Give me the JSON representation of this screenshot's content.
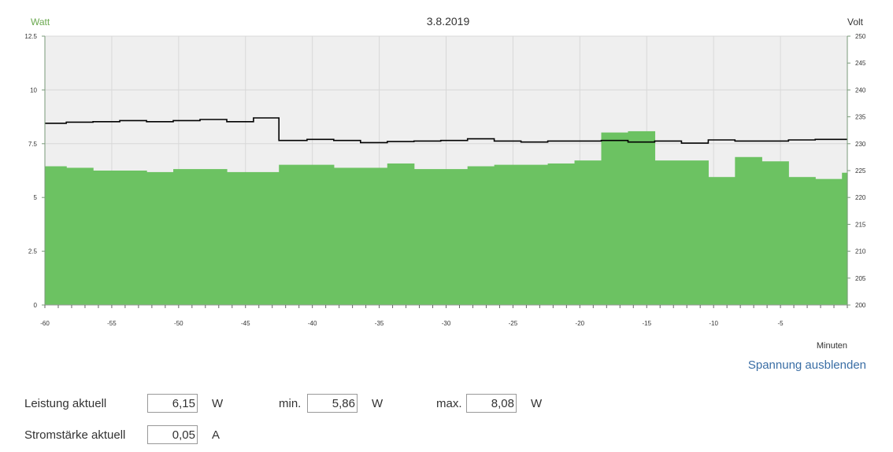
{
  "chart_data": {
    "type": "bar",
    "title": "3.8.2019",
    "xlabel": "Minuten",
    "ylabel_left": "Watt",
    "ylabel_right": "Volt",
    "xlim": [
      -60,
      0
    ],
    "ylim_left": [
      0,
      12.5
    ],
    "ylim_right": [
      200,
      250
    ],
    "x_ticks": [
      -60,
      -55,
      -50,
      -45,
      -40,
      -35,
      -30,
      -25,
      -20,
      -15,
      -10,
      -5
    ],
    "x_tick_labels": [
      "-60",
      "-55",
      "-50",
      "-45",
      "-40",
      "-35",
      "-30",
      "-25",
      "-20",
      "-15",
      "-10",
      "-5"
    ],
    "y_ticks_left": [
      0,
      2.5,
      5,
      7.5,
      10,
      12.5
    ],
    "y_tick_labels_left": [
      "0",
      "2.5",
      "5",
      "7.5",
      "10",
      "12.5"
    ],
    "y_ticks_right": [
      200,
      205,
      210,
      215,
      220,
      225,
      230,
      235,
      240,
      245,
      250
    ],
    "y_tick_labels_right": [
      "200",
      "205",
      "210",
      "215",
      "220",
      "225",
      "230",
      "235",
      "240",
      "245",
      "250"
    ],
    "grid": true,
    "colors": {
      "power": "#6cc262",
      "voltage": "#000000",
      "plot_bg": "#efefef",
      "watt_label": "#6aa84f"
    },
    "series": [
      {
        "kind": "power",
        "axis": "left",
        "values": [
          {
            "x0": -60,
            "x1": -58.4,
            "y": 6.45
          },
          {
            "x0": -58.4,
            "x1": -56.4,
            "y": 6.38
          },
          {
            "x0": -56.4,
            "x1": -52.4,
            "y": 6.25
          },
          {
            "x0": -52.4,
            "x1": -50.4,
            "y": 6.18
          },
          {
            "x0": -50.4,
            "x1": -46.4,
            "y": 6.32
          },
          {
            "x0": -46.4,
            "x1": -42.5,
            "y": 6.18
          },
          {
            "x0": -42.5,
            "x1": -38.4,
            "y": 6.52
          },
          {
            "x0": -38.4,
            "x1": -34.4,
            "y": 6.38
          },
          {
            "x0": -34.4,
            "x1": -32.4,
            "y": 6.58
          },
          {
            "x0": -32.4,
            "x1": -28.4,
            "y": 6.32
          },
          {
            "x0": -28.4,
            "x1": -26.4,
            "y": 6.45
          },
          {
            "x0": -26.4,
            "x1": -22.4,
            "y": 6.52
          },
          {
            "x0": -22.4,
            "x1": -20.4,
            "y": 6.58
          },
          {
            "x0": -20.4,
            "x1": -18.4,
            "y": 6.72
          },
          {
            "x0": -18.4,
            "x1": -16.4,
            "y": 8.02
          },
          {
            "x0": -16.4,
            "x1": -14.4,
            "y": 8.08
          },
          {
            "x0": -14.4,
            "x1": -10.4,
            "y": 6.72
          },
          {
            "x0": -10.4,
            "x1": -8.4,
            "y": 5.95
          },
          {
            "x0": -8.4,
            "x1": -6.4,
            "y": 6.88
          },
          {
            "x0": -6.4,
            "x1": -4.4,
            "y": 6.68
          },
          {
            "x0": -4.4,
            "x1": -2.4,
            "y": 5.95
          },
          {
            "x0": -2.4,
            "x1": -0.4,
            "y": 5.86
          },
          {
            "x0": -0.4,
            "x1": 0,
            "y": 6.15
          }
        ]
      },
      {
        "kind": "voltage",
        "axis": "right",
        "values": [
          {
            "x0": -60,
            "x1": -58.4,
            "y": 233.8
          },
          {
            "x0": -58.4,
            "x1": -56.4,
            "y": 234.0
          },
          {
            "x0": -56.4,
            "x1": -54.4,
            "y": 234.1
          },
          {
            "x0": -54.4,
            "x1": -52.4,
            "y": 234.3
          },
          {
            "x0": -52.4,
            "x1": -50.4,
            "y": 234.1
          },
          {
            "x0": -50.4,
            "x1": -48.4,
            "y": 234.3
          },
          {
            "x0": -48.4,
            "x1": -46.4,
            "y": 234.5
          },
          {
            "x0": -46.4,
            "x1": -44.4,
            "y": 234.1
          },
          {
            "x0": -44.4,
            "x1": -42.5,
            "y": 234.8
          },
          {
            "x0": -42.5,
            "x1": -40.4,
            "y": 230.6
          },
          {
            "x0": -40.4,
            "x1": -38.4,
            "y": 230.8
          },
          {
            "x0": -38.4,
            "x1": -36.4,
            "y": 230.6
          },
          {
            "x0": -36.4,
            "x1": -34.4,
            "y": 230.2
          },
          {
            "x0": -34.4,
            "x1": -32.4,
            "y": 230.4
          },
          {
            "x0": -32.4,
            "x1": -30.4,
            "y": 230.5
          },
          {
            "x0": -30.4,
            "x1": -28.4,
            "y": 230.6
          },
          {
            "x0": -28.4,
            "x1": -26.4,
            "y": 230.9
          },
          {
            "x0": -26.4,
            "x1": -24.4,
            "y": 230.5
          },
          {
            "x0": -24.4,
            "x1": -22.4,
            "y": 230.3
          },
          {
            "x0": -22.4,
            "x1": -20.4,
            "y": 230.5
          },
          {
            "x0": -20.4,
            "x1": -18.4,
            "y": 230.5
          },
          {
            "x0": -18.4,
            "x1": -16.4,
            "y": 230.6
          },
          {
            "x0": -16.4,
            "x1": -14.4,
            "y": 230.3
          },
          {
            "x0": -14.4,
            "x1": -12.4,
            "y": 230.5
          },
          {
            "x0": -12.4,
            "x1": -10.4,
            "y": 230.1
          },
          {
            "x0": -10.4,
            "x1": -8.4,
            "y": 230.7
          },
          {
            "x0": -8.4,
            "x1": -6.4,
            "y": 230.5
          },
          {
            "x0": -6.4,
            "x1": -4.4,
            "y": 230.5
          },
          {
            "x0": -4.4,
            "x1": -2.4,
            "y": 230.7
          },
          {
            "x0": -2.4,
            "x1": 0,
            "y": 230.8
          }
        ]
      }
    ]
  },
  "controls": {
    "toggle_voltage_label": "Spannung ausblenden"
  },
  "readouts": {
    "power_current_label": "Leistung aktuell",
    "power_current_value": "6,15",
    "power_unit": "W",
    "min_label": "min.",
    "min_value": "5,86",
    "min_unit": "W",
    "max_label": "max.",
    "max_value": "8,08",
    "max_unit": "W",
    "current_label": "Stromstärke aktuell",
    "current_value": "0,05",
    "current_unit": "A"
  }
}
